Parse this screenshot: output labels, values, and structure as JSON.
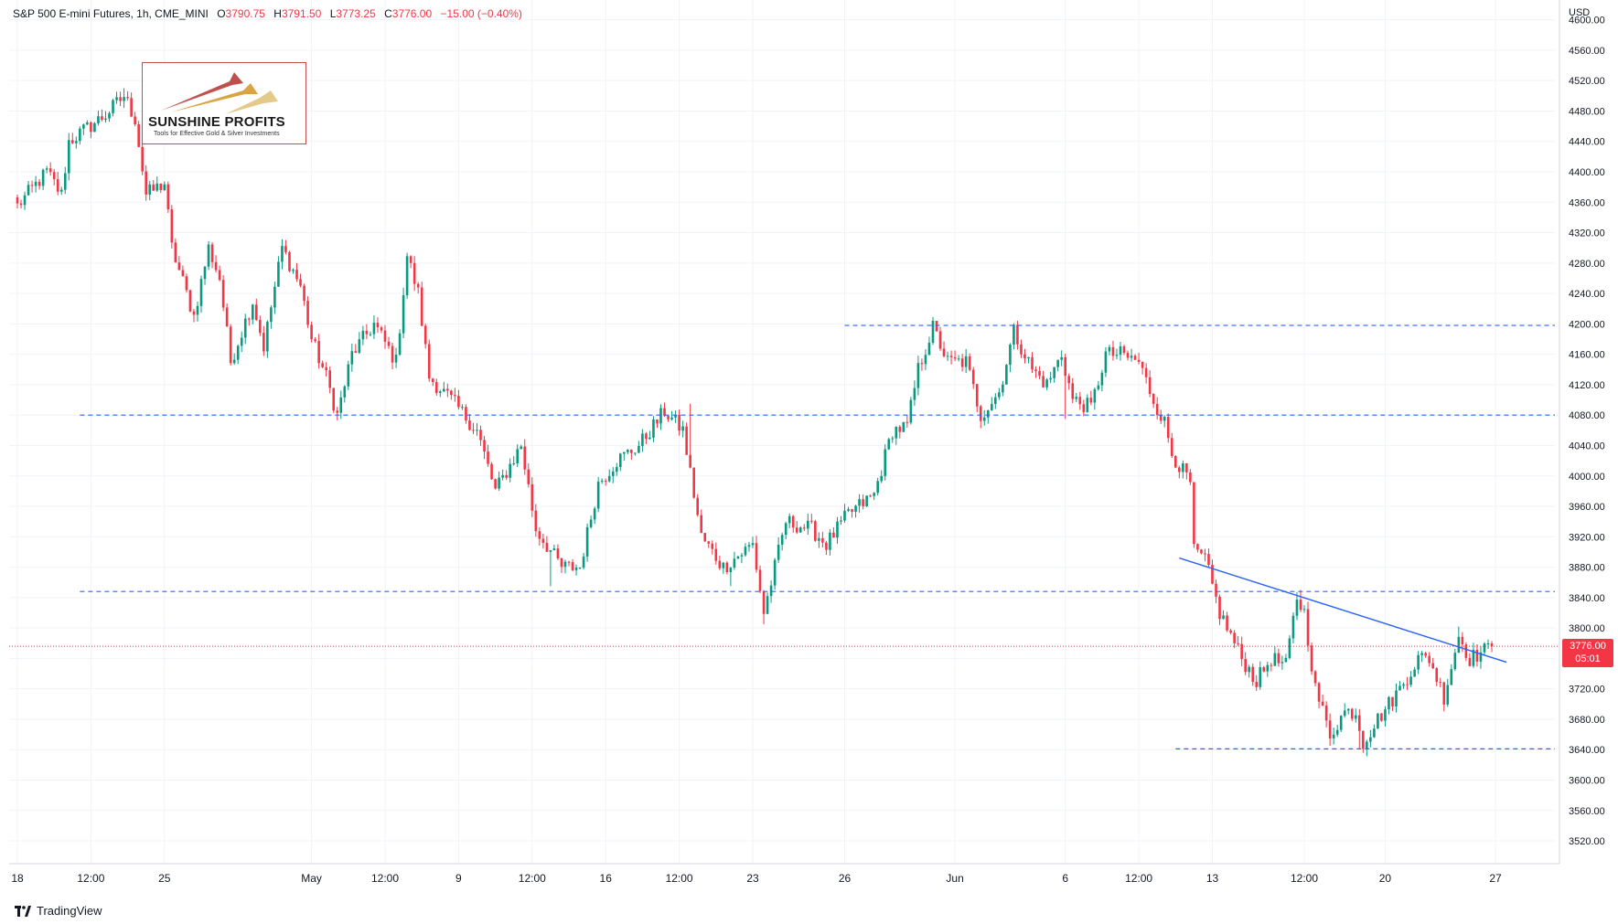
{
  "header": {
    "symbol": "S&P 500 E-mini Futures, 1h, CME_MINI",
    "open_label": "O",
    "open": "3790.75",
    "high_label": "H",
    "high": "3791.50",
    "low_label": "L",
    "low": "3773.25",
    "close_label": "C",
    "close": "3776.00",
    "change": "−15.00 (−0.40%)"
  },
  "currency": "USD",
  "logo": {
    "name": "SUNSHINE PROFITS",
    "tagline": "Tools for Effective Gold & Silver Investments"
  },
  "footer": {
    "brand": "TradingView"
  },
  "price_tag": {
    "price": "3776.00",
    "countdown": "05:01"
  },
  "colors": {
    "up": "#089981",
    "down": "#f23645",
    "level_line": "#2962ff",
    "trend_line": "#2962ff",
    "price_line": "#f23645"
  },
  "chart_data": {
    "type": "candlestick",
    "title": "S&P 500 E-mini Futures, 1h, CME_MINI",
    "ylabel": "USD",
    "ylim": [
      3490,
      4620
    ],
    "y_ticks": [
      3520,
      3560,
      3600,
      3640,
      3680,
      3720,
      3760,
      3800,
      3840,
      3880,
      3920,
      3960,
      4000,
      4040,
      4080,
      4120,
      4160,
      4200,
      4240,
      4280,
      4320,
      4360,
      4400,
      4440,
      4480,
      4520,
      4560,
      4600
    ],
    "y_tick_labels": [
      "3520.00",
      "3560.00",
      "3600.00",
      "3640.00",
      "3680.00",
      "3720.00",
      "3760.00",
      "3800.00",
      "3840.00",
      "3880.00",
      "3920.00",
      "3960.00",
      "4000.00",
      "4040.00",
      "4080.00",
      "4120.00",
      "4160.00",
      "4200.00",
      "4240.00",
      "4280.00",
      "4320.00",
      "4360.00",
      "4400.00",
      "4440.00",
      "4480.00",
      "4520.00",
      "4560.00",
      "4600.00"
    ],
    "x_tick_labels": [
      "18",
      "12:00",
      "25",
      "May",
      "12:00",
      "9",
      "12:00",
      "16",
      "12:00",
      "23",
      "26",
      "Jun",
      "6",
      "12:00",
      "13",
      "12:00",
      "20",
      "27"
    ],
    "x_tick_index": [
      0,
      20,
      40,
      80,
      100,
      120,
      140,
      160,
      180,
      200,
      225,
      255,
      285,
      305,
      325,
      350,
      372,
      402
    ],
    "last_price": 3776.0,
    "horizontal_levels": [
      {
        "price": 4198,
        "from_index": 225,
        "to_index": 410
      },
      {
        "price": 4080,
        "from_index": 17,
        "to_index": 410
      },
      {
        "price": 3848,
        "from_index": 17,
        "to_index": 410
      },
      {
        "price": 3641,
        "from_index": 315,
        "to_index": 410
      }
    ],
    "trend_line": {
      "from_index": 316,
      "from_price": 3892,
      "to_index": 405,
      "to_price": 3755
    },
    "anchors": [
      [
        0,
        4355
      ],
      [
        8,
        4400
      ],
      [
        12,
        4370
      ],
      [
        14,
        4440
      ],
      [
        24,
        4475
      ],
      [
        29,
        4500
      ],
      [
        32,
        4470
      ],
      [
        35,
        4370
      ],
      [
        40,
        4385
      ],
      [
        42,
        4300
      ],
      [
        46,
        4240
      ],
      [
        48,
        4210
      ],
      [
        52,
        4300
      ],
      [
        55,
        4260
      ],
      [
        58,
        4150
      ],
      [
        64,
        4230
      ],
      [
        67,
        4170
      ],
      [
        72,
        4300
      ],
      [
        77,
        4250
      ],
      [
        80,
        4180
      ],
      [
        84,
        4130
      ],
      [
        87,
        4080
      ],
      [
        91,
        4160
      ],
      [
        97,
        4200
      ],
      [
        103,
        4150
      ],
      [
        106,
        4290
      ],
      [
        109,
        4240
      ],
      [
        112,
        4130
      ],
      [
        118,
        4100
      ],
      [
        125,
        4060
      ],
      [
        130,
        3980
      ],
      [
        137,
        4040
      ],
      [
        141,
        3930
      ],
      [
        148,
        3880
      ],
      [
        153,
        3880
      ],
      [
        158,
        3990
      ],
      [
        163,
        4020
      ],
      [
        169,
        4040
      ],
      [
        176,
        4085
      ],
      [
        181,
        4060
      ],
      [
        186,
        3920
      ],
      [
        192,
        3880
      ],
      [
        200,
        3910
      ],
      [
        203,
        3820
      ],
      [
        209,
        3940
      ],
      [
        216,
        3930
      ],
      [
        220,
        3910
      ],
      [
        226,
        3950
      ],
      [
        233,
        3975
      ],
      [
        238,
        4060
      ],
      [
        242,
        4065
      ],
      [
        245,
        4140
      ],
      [
        249,
        4195
      ],
      [
        253,
        4150
      ],
      [
        258,
        4150
      ],
      [
        262,
        4080
      ],
      [
        267,
        4110
      ],
      [
        271,
        4190
      ],
      [
        276,
        4140
      ],
      [
        280,
        4120
      ],
      [
        284,
        4160
      ],
      [
        287,
        4100
      ],
      [
        292,
        4090
      ],
      [
        296,
        4160
      ],
      [
        300,
        4160
      ],
      [
        305,
        4150
      ],
      [
        309,
        4100
      ],
      [
        312,
        4070
      ],
      [
        314,
        4030
      ],
      [
        319,
        3990
      ],
      [
        320,
        3900
      ],
      [
        323,
        3890
      ],
      [
        327,
        3820
      ],
      [
        333,
        3760
      ],
      [
        337,
        3730
      ],
      [
        341,
        3760
      ],
      [
        345,
        3750
      ],
      [
        348,
        3840
      ],
      [
        350,
        3820
      ],
      [
        353,
        3720
      ],
      [
        357,
        3660
      ],
      [
        361,
        3690
      ],
      [
        364,
        3690
      ],
      [
        366,
        3650
      ],
      [
        370,
        3680
      ],
      [
        376,
        3720
      ],
      [
        381,
        3760
      ],
      [
        384,
        3760
      ],
      [
        388,
        3710
      ],
      [
        392,
        3790
      ],
      [
        395,
        3760
      ],
      [
        399,
        3770
      ],
      [
        401,
        3776
      ]
    ],
    "extremes": [
      [
        29,
        4510
      ],
      [
        124,
        4055
      ],
      [
        145,
        3855
      ],
      [
        183,
        4095
      ],
      [
        194,
        3855
      ],
      [
        203,
        3805
      ],
      [
        250,
        4203
      ],
      [
        285,
        4075
      ],
      [
        302,
        4165
      ],
      [
        357,
        3645
      ],
      [
        365,
        3641
      ],
      [
        349,
        3850
      ],
      [
        392,
        3802
      ]
    ]
  }
}
